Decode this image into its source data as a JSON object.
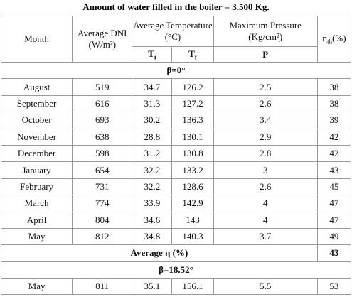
{
  "title": "Amount of water filled in the boiler = 3.500 Kg.",
  "headers": {
    "month": "Month",
    "dni": "Average DNI",
    "dni_unit": "(W/m²)",
    "avg_temp": "Average Temperature (°C)",
    "ti_main": "T",
    "ti_sub": "i",
    "tf_main": "T",
    "tf_sub": "f",
    "pressure": "Maximum Pressure",
    "pressure_unit": "(Kg/cm²)",
    "p": "P",
    "eta_main": "η",
    "eta_sub": "th",
    "eta_unit": "(%)"
  },
  "sections": [
    {
      "label": "β=0°",
      "rows": [
        [
          "August",
          "519",
          "34.7",
          "126.2",
          "2.5",
          "38"
        ],
        [
          "September",
          "616",
          "31.3",
          "127.2",
          "2.6",
          "38"
        ],
        [
          "October",
          "693",
          "30.2",
          "136.3",
          "3.4",
          "39"
        ],
        [
          "November",
          "638",
          "28.8",
          "130.1",
          "2.9",
          "42"
        ],
        [
          "December",
          "598",
          "31.2",
          "130.8",
          "2.8",
          "42"
        ],
        [
          "January",
          "654",
          "32.2",
          "133.2",
          "3",
          "43"
        ],
        [
          "February",
          "731",
          "32.2",
          "128.6",
          "2.6",
          "45"
        ],
        [
          "March",
          "774",
          "33.9",
          "142.9",
          "4",
          "47"
        ],
        [
          "April",
          "804",
          "34.6",
          "143",
          "4",
          "47"
        ],
        [
          "May",
          "812",
          "34.8",
          "140.3",
          "3.7",
          "49"
        ]
      ],
      "average_label": "Average η (%)",
      "average_value": "43"
    },
    {
      "label": "β=18.52°",
      "rows": [
        [
          "May",
          "811",
          "35.1",
          "156.1",
          "5.5",
          "53"
        ]
      ]
    }
  ]
}
